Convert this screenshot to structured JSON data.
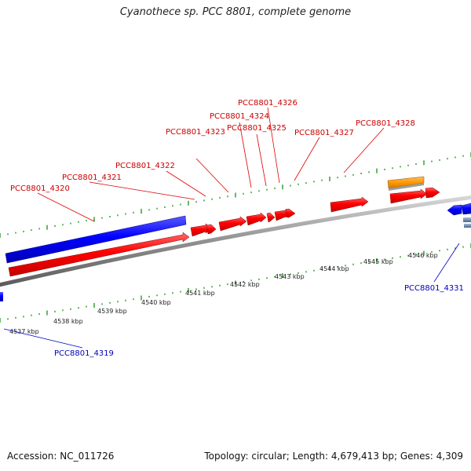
{
  "title": "Cyanothece sp. PCC 8801, complete genome",
  "footer": {
    "accession": "Accession: NC_011726",
    "summary": "Topology: circular; Length: 4,679,413 bp; Genes: 4,309"
  },
  "colors": {
    "forward": "#ff0000",
    "reverse": "#0000ff",
    "other": "#ff9900",
    "forward_label": "#cc0000",
    "reverse_label": "#0000bb",
    "tick": "#008800",
    "backbone": "#808080"
  },
  "scale": {
    "unit": "kbp",
    "ticks": [
      {
        "label": "4537 kbp"
      },
      {
        "label": "4538 kbp"
      },
      {
        "label": "4539 kbp"
      },
      {
        "label": "4540 kbp"
      },
      {
        "label": "4541 kbp"
      },
      {
        "label": "4542 kbp"
      },
      {
        "label": "4543 kbp"
      },
      {
        "label": "4544 kbp"
      },
      {
        "label": "4545 kbp"
      },
      {
        "label": "4546 kbp"
      }
    ]
  },
  "genes": {
    "forward_labels": [
      {
        "text": "PCC8801_4320"
      },
      {
        "text": "PCC8801_4321"
      },
      {
        "text": "PCC8801_4322"
      },
      {
        "text": "PCC8801_4323"
      },
      {
        "text": "PCC8801_4324"
      },
      {
        "text": "PCC8801_4325"
      },
      {
        "text": "PCC8801_4326"
      },
      {
        "text": "PCC8801_4327"
      },
      {
        "text": "PCC8801_4328"
      }
    ],
    "reverse_labels": [
      {
        "text": "PCC8801_4319"
      },
      {
        "text": "PCC8801_4331"
      }
    ]
  }
}
